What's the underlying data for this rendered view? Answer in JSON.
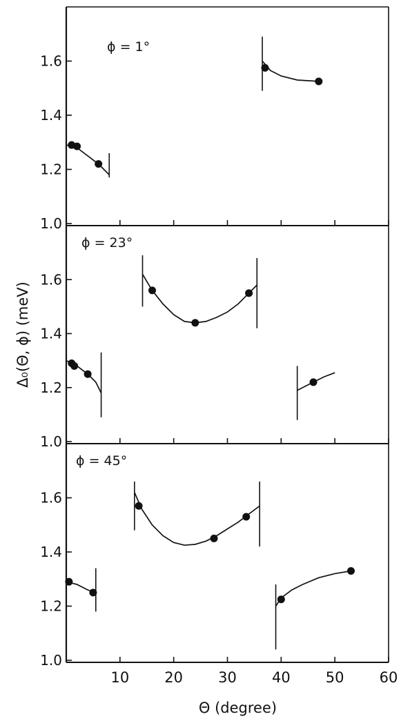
{
  "chart_data": {
    "type": "scatter",
    "xlabel": "Θ (degree)",
    "ylabel": "Δ₀(Θ, ϕ) (meV)",
    "xlim": [
      0,
      60
    ],
    "ylim": [
      1.0,
      1.8
    ],
    "x_ticks": [
      "10",
      "20",
      "30",
      "40",
      "50",
      "60"
    ],
    "x_tick_values": [
      10,
      20,
      30,
      40,
      50,
      60
    ],
    "y_ticks": [
      "1.0",
      "1.2",
      "1.4",
      "1.6"
    ],
    "y_tick_values": [
      1.0,
      1.2,
      1.4,
      1.6
    ],
    "panels": [
      {
        "label": "ϕ = 1°",
        "points": [
          [
            1.0,
            1.29
          ],
          [
            2.0,
            1.285
          ],
          [
            6.0,
            1.22
          ],
          [
            37.0,
            1.575
          ],
          [
            47.0,
            1.525
          ]
        ],
        "curves": [
          [
            [
              0,
              1.29
            ],
            [
              2,
              1.28
            ],
            [
              4,
              1.25
            ],
            [
              6,
              1.22
            ],
            [
              8,
              1.18
            ]
          ],
          [
            [
              36.5,
              1.6
            ],
            [
              38,
              1.565
            ],
            [
              40,
              1.545
            ],
            [
              43,
              1.53
            ],
            [
              47,
              1.525
            ]
          ]
        ],
        "vlines": [
          {
            "x": 8.0,
            "y0": 1.17,
            "y1": 1.26
          },
          {
            "x": 36.5,
            "y0": 1.49,
            "y1": 1.69
          }
        ]
      },
      {
        "label": "ϕ = 23°",
        "points": [
          [
            1.0,
            1.29
          ],
          [
            1.5,
            1.28
          ],
          [
            4.0,
            1.25
          ],
          [
            16.0,
            1.56
          ],
          [
            24.0,
            1.44
          ],
          [
            34.0,
            1.55
          ],
          [
            46.0,
            1.22
          ]
        ],
        "curves": [
          [
            [
              0,
              1.3
            ],
            [
              2,
              1.28
            ],
            [
              4,
              1.25
            ],
            [
              5.5,
              1.22
            ],
            [
              6.5,
              1.18
            ]
          ],
          [
            [
              14.2,
              1.62
            ],
            [
              16,
              1.56
            ],
            [
              18,
              1.51
            ],
            [
              20,
              1.47
            ],
            [
              22,
              1.445
            ],
            [
              24,
              1.44
            ],
            [
              26,
              1.445
            ],
            [
              28,
              1.46
            ],
            [
              30,
              1.48
            ],
            [
              32,
              1.51
            ],
            [
              34,
              1.55
            ],
            [
              35.5,
              1.58
            ]
          ],
          [
            [
              43.0,
              1.19
            ],
            [
              44,
              1.2
            ],
            [
              46,
              1.22
            ],
            [
              48,
              1.24
            ],
            [
              50,
              1.255
            ]
          ]
        ],
        "vlines": [
          {
            "x": 6.5,
            "y0": 1.09,
            "y1": 1.33
          },
          {
            "x": 14.2,
            "y0": 1.5,
            "y1": 1.69
          },
          {
            "x": 35.5,
            "y0": 1.42,
            "y1": 1.68
          },
          {
            "x": 43.0,
            "y0": 1.08,
            "y1": 1.28
          }
        ]
      },
      {
        "label": "ϕ = 45°",
        "points": [
          [
            0.5,
            1.29
          ],
          [
            5.0,
            1.25
          ],
          [
            13.5,
            1.57
          ],
          [
            27.5,
            1.45
          ],
          [
            33.5,
            1.53
          ],
          [
            40.0,
            1.225
          ],
          [
            53.0,
            1.33
          ]
        ],
        "curves": [
          [
            [
              0,
              1.29
            ],
            [
              2,
              1.28
            ],
            [
              4,
              1.26
            ],
            [
              5.5,
              1.25
            ]
          ],
          [
            [
              12.7,
              1.62
            ],
            [
              14,
              1.56
            ],
            [
              16,
              1.5
            ],
            [
              18,
              1.46
            ],
            [
              20,
              1.435
            ],
            [
              22,
              1.425
            ],
            [
              24,
              1.428
            ],
            [
              26,
              1.44
            ],
            [
              28,
              1.46
            ],
            [
              30,
              1.485
            ],
            [
              32,
              1.51
            ],
            [
              34,
              1.54
            ],
            [
              36,
              1.57
            ]
          ],
          [
            [
              39.0,
              1.2
            ],
            [
              40,
              1.23
            ],
            [
              42,
              1.26
            ],
            [
              44,
              1.28
            ],
            [
              47,
              1.305
            ],
            [
              50,
              1.32
            ],
            [
              53,
              1.33
            ]
          ]
        ],
        "vlines": [
          {
            "x": 5.5,
            "y0": 1.18,
            "y1": 1.34
          },
          {
            "x": 12.7,
            "y0": 1.48,
            "y1": 1.66
          },
          {
            "x": 36.0,
            "y0": 1.42,
            "y1": 1.66
          },
          {
            "x": 39.0,
            "y0": 1.04,
            "y1": 1.28
          }
        ]
      }
    ]
  }
}
